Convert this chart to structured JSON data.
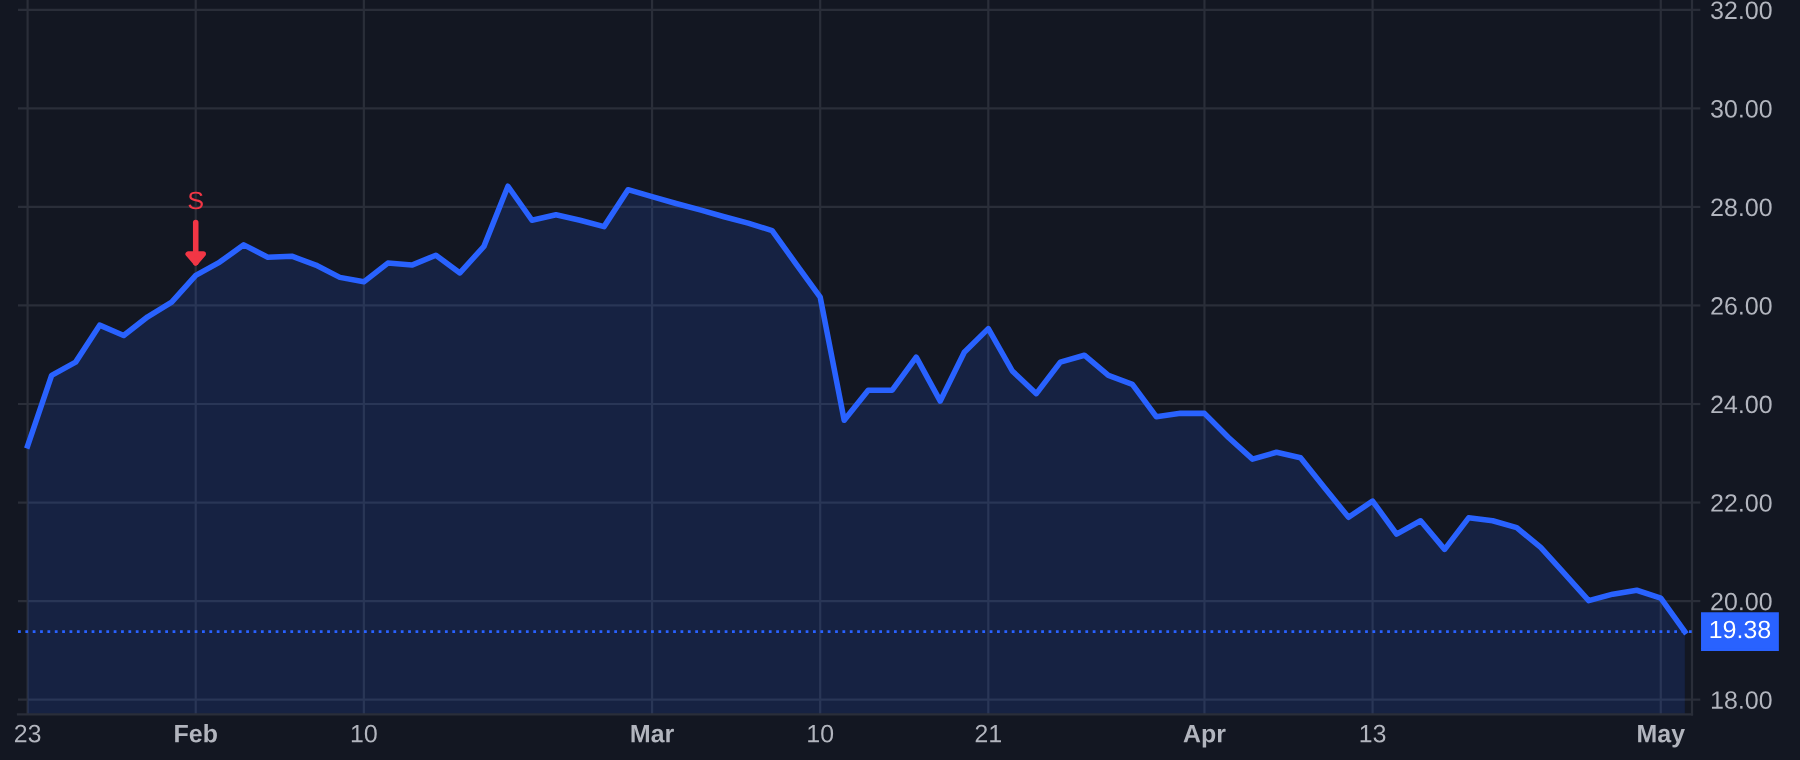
{
  "chart_data": {
    "type": "area",
    "categories": [
      "23",
      null,
      null,
      null,
      null,
      null,
      null,
      "Feb",
      null,
      null,
      null,
      null,
      null,
      null,
      "10",
      null,
      null,
      null,
      null,
      null,
      null,
      null,
      null,
      null,
      null,
      null,
      "Mar",
      null,
      null,
      null,
      null,
      null,
      null,
      "10",
      null,
      null,
      null,
      null,
      null,
      null,
      "21",
      null,
      null,
      null,
      null,
      null,
      null,
      null,
      null,
      "Apr",
      null,
      null,
      null,
      null,
      null,
      null,
      "13",
      null,
      null,
      null,
      null,
      null,
      null,
      null,
      null,
      null,
      null,
      null,
      "May",
      null
    ],
    "series": [
      {
        "color": "#2962ff",
        "values": [
          23.15,
          24.58,
          24.85,
          25.6,
          25.39,
          25.77,
          26.07,
          26.61,
          26.88,
          27.23,
          26.98,
          27.0,
          26.82,
          26.57,
          26.48,
          26.86,
          26.82,
          27.02,
          26.66,
          27.2,
          28.42,
          27.73,
          27.84,
          27.73,
          27.6,
          28.35,
          28.21,
          28.07,
          27.94,
          27.8,
          27.67,
          27.52,
          26.84,
          26.17,
          23.67,
          24.28,
          24.28,
          24.95,
          24.06,
          25.05,
          25.53,
          24.67,
          24.21,
          24.85,
          24.99,
          24.58,
          24.4,
          23.74,
          23.81,
          23.81,
          23.32,
          22.88,
          23.02,
          22.91,
          22.3,
          21.7,
          22.03,
          21.36,
          21.63,
          21.05,
          21.69,
          21.63,
          21.49,
          21.09,
          20.55,
          20.01,
          20.14,
          20.22,
          20.06,
          19.38
        ]
      }
    ],
    "ylim": [
      17.7,
      32.2
    ],
    "yticks": [
      {
        "value": 18,
        "label": "18.00"
      },
      {
        "value": 20,
        "label": "20.00"
      },
      {
        "value": 22,
        "label": "22.00"
      },
      {
        "value": 24,
        "label": "24.00"
      },
      {
        "value": 26,
        "label": "26.00"
      },
      {
        "value": 28,
        "label": "28.00"
      },
      {
        "value": 30,
        "label": "30.00"
      },
      {
        "value": 32,
        "label": "32.00"
      }
    ],
    "ref_lines": [
      {
        "axis": "y",
        "value": 19.38,
        "label": "19.38",
        "color": "#2962ff",
        "line_style": "dotted"
      }
    ],
    "annotations": [
      {
        "text": "S",
        "y": 26.61
      }
    ],
    "grid": true,
    "marker": "none",
    "line_style": "solid",
    "legend": false
  }
}
